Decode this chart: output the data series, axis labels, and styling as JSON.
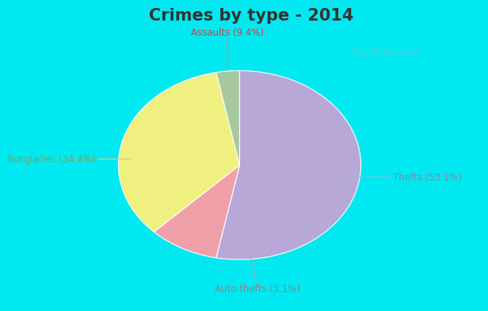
{
  "title": "Crimes by type - 2014",
  "slices": [
    {
      "label": "Thefts (53.1%)",
      "value": 53.1,
      "color": "#b8a8d8"
    },
    {
      "label": "Assaults (9.4%)",
      "value": 9.4,
      "color": "#f0a0a8"
    },
    {
      "label": "Burglaries (34.4%)",
      "value": 34.4,
      "color": "#f0f080"
    },
    {
      "label": "Auto thefts (3.1%)",
      "value": 3.1,
      "color": "#a8c8a0"
    }
  ],
  "title_fontsize": 15,
  "title_color": "#333333",
  "bg_color_outer": "#00e8f0",
  "bg_color_inner": "#d8eedc",
  "watermark": "City-Data.com",
  "label_fontsize": 8.5,
  "label_colors": {
    "Thefts (53.1%)": "#8888aa",
    "Assaults (9.4%)": "#cc4444",
    "Burglaries (34.4%)": "#999944",
    "Auto thefts (3.1%)": "#888888"
  },
  "arrow_colors": {
    "Thefts (53.1%)": "#aaaacc",
    "Assaults (9.4%)": "#cc8888",
    "Burglaries (34.4%)": "#cccc88",
    "Auto thefts (3.1%)": "#aaaaaa"
  }
}
